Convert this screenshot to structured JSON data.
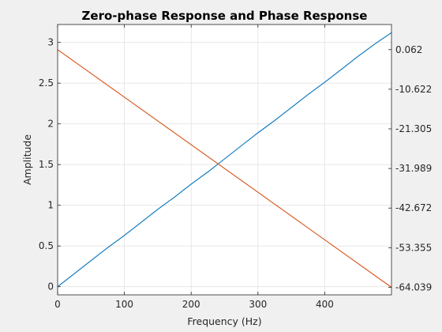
{
  "chart_data": {
    "type": "line",
    "title": "Zero-phase Response and Phase Response",
    "xlabel": "Frequency (Hz)",
    "ylabel": "Amplitude",
    "y2label": "",
    "xlim": [
      0,
      500
    ],
    "ylim": [
      -0.1,
      3.22
    ],
    "y2lim": [
      -66.07,
      6.83
    ],
    "x_ticks": [
      0,
      100,
      200,
      300,
      400
    ],
    "y_ticks": [
      0,
      0.5,
      1,
      1.5,
      2,
      2.5,
      3
    ],
    "y_tick_labels": [
      "0",
      "0.5",
      "1",
      "1.5",
      "2",
      "2.5",
      "3"
    ],
    "y2_ticks": [
      0.062,
      -10.622,
      -21.305,
      -31.989,
      -42.672,
      -53.355,
      -64.039
    ],
    "y2_tick_labels": [
      "0.062",
      "-10.622",
      "-21.305",
      "-31.989",
      "-42.672",
      "-53.355",
      "-64.039"
    ],
    "grid": true,
    "series": [
      {
        "axis": "left",
        "color": "#0072bd",
        "x": [
          0,
          25,
          50,
          75,
          100,
          125,
          150,
          175,
          200,
          225,
          250,
          275,
          300,
          325,
          350,
          375,
          400,
          425,
          450,
          475,
          500
        ],
        "values": [
          0.0,
          0.16,
          0.32,
          0.48,
          0.63,
          0.79,
          0.95,
          1.1,
          1.26,
          1.41,
          1.57,
          1.73,
          1.89,
          2.04,
          2.2,
          2.36,
          2.51,
          2.67,
          2.83,
          2.98,
          3.12
        ]
      },
      {
        "axis": "right",
        "color": "#d95319",
        "x": [
          0,
          500
        ],
        "values": [
          0.062,
          -64.039
        ]
      }
    ]
  }
}
